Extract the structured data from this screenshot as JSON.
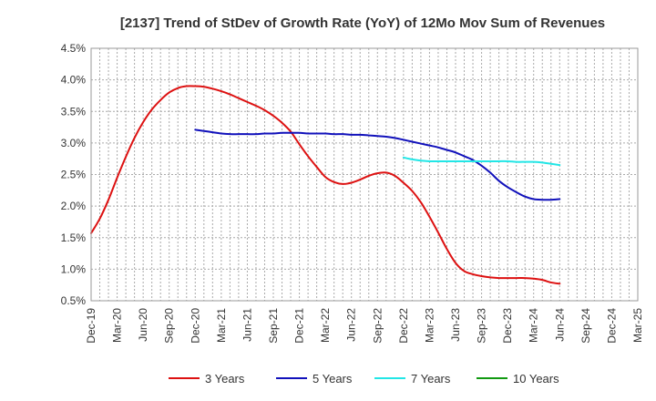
{
  "chart_data": {
    "type": "line",
    "title": "[2137]  Trend of StDev of Growth Rate (YoY) of 12Mo Mov Sum of Revenues",
    "xlabel": "",
    "ylabel": "",
    "ylim": [
      0.5,
      4.5
    ],
    "y_ticks": [
      "0.5%",
      "1.0%",
      "1.5%",
      "2.0%",
      "2.5%",
      "3.0%",
      "3.5%",
      "4.0%",
      "4.5%"
    ],
    "y_tick_values": [
      0.5,
      1.0,
      1.5,
      2.0,
      2.5,
      3.0,
      3.5,
      4.0,
      4.5
    ],
    "x_ticks": [
      "Dec-19",
      "Mar-20",
      "Jun-20",
      "Sep-20",
      "Dec-20",
      "Mar-21",
      "Jun-21",
      "Sep-21",
      "Dec-21",
      "Mar-22",
      "Jun-22",
      "Sep-22",
      "Dec-22",
      "Mar-23",
      "Jun-23",
      "Sep-23",
      "Dec-23",
      "Mar-24",
      "Jun-24",
      "Sep-24",
      "Dec-24",
      "Mar-25"
    ],
    "x_range_months": [
      0,
      63
    ],
    "grid": true,
    "legend_position": "bottom",
    "series": [
      {
        "name": "3 Years",
        "color": "#dd1111",
        "points": [
          [
            0,
            1.57
          ],
          [
            1,
            1.8
          ],
          [
            2,
            2.1
          ],
          [
            3,
            2.45
          ],
          [
            4,
            2.78
          ],
          [
            5,
            3.08
          ],
          [
            6,
            3.33
          ],
          [
            7,
            3.53
          ],
          [
            8,
            3.68
          ],
          [
            9,
            3.8
          ],
          [
            10,
            3.87
          ],
          [
            11,
            3.9
          ],
          [
            12,
            3.9
          ],
          [
            13,
            3.89
          ],
          [
            14,
            3.86
          ],
          [
            15,
            3.82
          ],
          [
            16,
            3.77
          ],
          [
            17,
            3.71
          ],
          [
            18,
            3.65
          ],
          [
            19,
            3.59
          ],
          [
            20,
            3.52
          ],
          [
            21,
            3.43
          ],
          [
            22,
            3.32
          ],
          [
            23,
            3.18
          ],
          [
            24,
            2.98
          ],
          [
            25,
            2.79
          ],
          [
            26,
            2.62
          ],
          [
            27,
            2.46
          ],
          [
            28,
            2.38
          ],
          [
            29,
            2.35
          ],
          [
            30,
            2.37
          ],
          [
            31,
            2.42
          ],
          [
            32,
            2.48
          ],
          [
            33,
            2.52
          ],
          [
            34,
            2.53
          ],
          [
            35,
            2.48
          ],
          [
            36,
            2.37
          ],
          [
            37,
            2.24
          ],
          [
            38,
            2.06
          ],
          [
            39,
            1.83
          ],
          [
            40,
            1.58
          ],
          [
            41,
            1.32
          ],
          [
            42,
            1.1
          ],
          [
            43,
            0.97
          ],
          [
            44,
            0.92
          ],
          [
            45,
            0.89
          ],
          [
            46,
            0.87
          ],
          [
            47,
            0.86
          ],
          [
            48,
            0.86
          ],
          [
            49,
            0.86
          ],
          [
            50,
            0.86
          ],
          [
            51,
            0.85
          ],
          [
            52,
            0.83
          ],
          [
            53,
            0.79
          ],
          [
            54,
            0.77
          ]
        ]
      },
      {
        "name": "5 Years",
        "color": "#1111bb",
        "points": [
          [
            12,
            3.21
          ],
          [
            13,
            3.19
          ],
          [
            14,
            3.17
          ],
          [
            15,
            3.15
          ],
          [
            16,
            3.14
          ],
          [
            17,
            3.14
          ],
          [
            18,
            3.14
          ],
          [
            19,
            3.14
          ],
          [
            20,
            3.15
          ],
          [
            21,
            3.15
          ],
          [
            22,
            3.16
          ],
          [
            23,
            3.16
          ],
          [
            24,
            3.16
          ],
          [
            25,
            3.15
          ],
          [
            26,
            3.15
          ],
          [
            27,
            3.15
          ],
          [
            28,
            3.14
          ],
          [
            29,
            3.14
          ],
          [
            30,
            3.13
          ],
          [
            31,
            3.13
          ],
          [
            32,
            3.12
          ],
          [
            33,
            3.11
          ],
          [
            34,
            3.1
          ],
          [
            35,
            3.08
          ],
          [
            36,
            3.05
          ],
          [
            37,
            3.02
          ],
          [
            38,
            2.99
          ],
          [
            39,
            2.96
          ],
          [
            40,
            2.93
          ],
          [
            41,
            2.89
          ],
          [
            42,
            2.85
          ],
          [
            43,
            2.79
          ],
          [
            44,
            2.73
          ],
          [
            45,
            2.64
          ],
          [
            46,
            2.53
          ],
          [
            47,
            2.4
          ],
          [
            48,
            2.3
          ],
          [
            49,
            2.22
          ],
          [
            50,
            2.15
          ],
          [
            51,
            2.11
          ],
          [
            52,
            2.1
          ],
          [
            53,
            2.1
          ],
          [
            54,
            2.11
          ]
        ]
      },
      {
        "name": "7 Years",
        "color": "#22e6e6",
        "points": [
          [
            36,
            2.77
          ],
          [
            37,
            2.74
          ],
          [
            38,
            2.72
          ],
          [
            39,
            2.71
          ],
          [
            40,
            2.71
          ],
          [
            41,
            2.71
          ],
          [
            42,
            2.71
          ],
          [
            43,
            2.71
          ],
          [
            44,
            2.71
          ],
          [
            45,
            2.71
          ],
          [
            46,
            2.71
          ],
          [
            47,
            2.71
          ],
          [
            48,
            2.71
          ],
          [
            49,
            2.7
          ],
          [
            50,
            2.7
          ],
          [
            51,
            2.7
          ],
          [
            52,
            2.69
          ],
          [
            53,
            2.67
          ],
          [
            54,
            2.65
          ]
        ]
      },
      {
        "name": "10 Years",
        "color": "#119911",
        "points": []
      }
    ]
  }
}
